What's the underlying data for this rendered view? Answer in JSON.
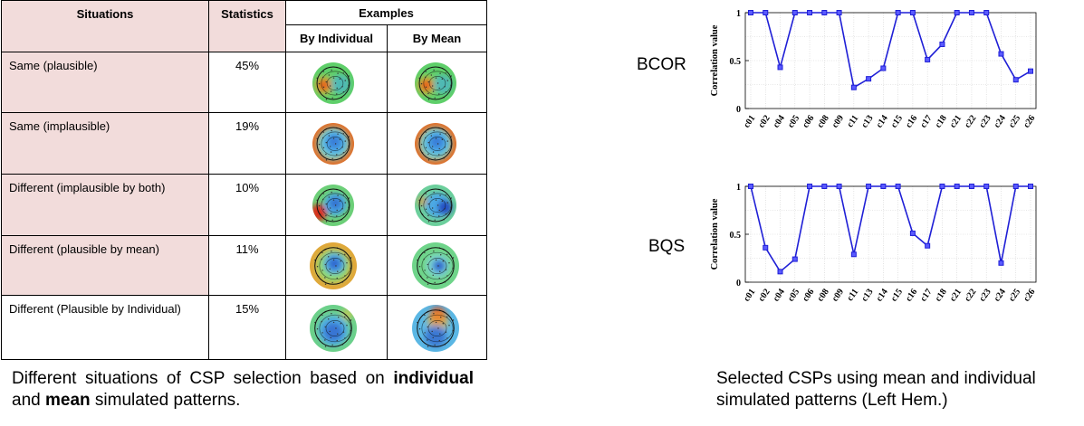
{
  "table": {
    "headers": {
      "situations": "Situations",
      "statistics": "Statistics",
      "examples": "Examples",
      "by_individual": "By Individual",
      "by_mean": "By Mean"
    },
    "rows": [
      {
        "situation": "Same (plausible)",
        "statistic": "45%",
        "individual_map": "topomap-red-left-focus",
        "mean_map": "topomap-red-left-focus"
      },
      {
        "situation": "Same (implausible)",
        "statistic": "19%",
        "individual_map": "topomap-blue-center-red-rim",
        "mean_map": "topomap-blue-center-red-rim"
      },
      {
        "situation": "Different (implausible  by both)",
        "statistic": "10%",
        "individual_map": "topomap-blue-center-red-left",
        "mean_map": "topomap-blue-right-focus"
      },
      {
        "situation": "Different (plausible  by mean)",
        "statistic": "11%",
        "individual_map": "topomap-blue-center-orange-rim",
        "mean_map": "topomap-blue-right-small"
      },
      {
        "situation": "Different (Plausible by Individual)",
        "statistic": "15%",
        "individual_map": "topomap-blue-bottom",
        "mean_map": "topomap-mixed-top-orange"
      }
    ]
  },
  "caption_left": {
    "part1": "Different  situations  of  CSP  selection  based  on",
    "bold1": "individual",
    "part2": " and ",
    "bold2": "mean",
    "part3": " simulated patterns."
  },
  "caption_right": "Selected CSPs using mean and individual simulated patterns (Left Hem.)",
  "colors": {
    "table_fill": "#f2dcdb",
    "line_color": "#1f1fd6"
  },
  "chart_data": [
    {
      "type": "line",
      "label": "BCOR",
      "ylabel": "Correlation value",
      "ylim": [
        0,
        1
      ],
      "yticks": [
        "0",
        "0.5",
        "1"
      ],
      "grid": true,
      "categories": [
        "c01",
        "c02",
        "c04",
        "c05",
        "c06",
        "c08",
        "c09",
        "c11",
        "c13",
        "c14",
        "c15",
        "c16",
        "c17",
        "c18",
        "c21",
        "c22",
        "c23",
        "c24",
        "c25",
        "c26"
      ],
      "series": [
        {
          "values": [
            1,
            1,
            0.43,
            1,
            1,
            1,
            1,
            0.22,
            0.31,
            0.42,
            1,
            1,
            0.51,
            0.67,
            1,
            1,
            1,
            0.57,
            0.3,
            0.39
          ]
        }
      ]
    },
    {
      "type": "line",
      "label": "BQS",
      "ylabel": "Correlation value",
      "ylim": [
        0,
        1
      ],
      "yticks": [
        "0",
        "0.5",
        "1"
      ],
      "grid": true,
      "categories": [
        "c01",
        "c02",
        "c04",
        "c05",
        "c06",
        "c08",
        "c09",
        "c11",
        "c13",
        "c14",
        "c15",
        "c16",
        "c17",
        "c18",
        "c21",
        "c22",
        "c23",
        "c24",
        "c25",
        "c26"
      ],
      "series": [
        {
          "values": [
            1,
            0.36,
            0.11,
            0.24,
            1,
            1,
            1,
            0.29,
            1,
            1,
            1,
            0.51,
            0.38,
            1,
            1,
            1,
            1,
            0.2,
            1,
            1
          ]
        }
      ]
    }
  ]
}
